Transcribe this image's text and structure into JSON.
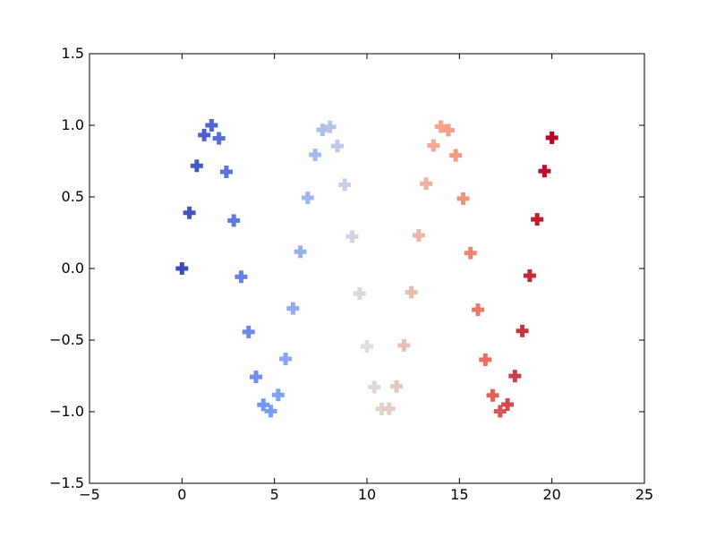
{
  "chart_data": {
    "type": "scatter",
    "title": "",
    "xlabel": "",
    "ylabel": "",
    "xlim": [
      -5,
      25
    ],
    "ylim": [
      -1.5,
      1.5
    ],
    "x_ticks": [
      "−5",
      "0",
      "5",
      "10",
      "15",
      "20",
      "25"
    ],
    "x_tick_values": [
      -5,
      0,
      5,
      10,
      15,
      20,
      25
    ],
    "y_ticks": [
      "1.5",
      "1.0",
      "0.5",
      "0.0",
      "−0.5",
      "−1.0",
      "−1.5"
    ],
    "y_tick_values": [
      1.5,
      1.0,
      0.5,
      0.0,
      -0.5,
      -1.0,
      -1.5
    ],
    "grid": false,
    "marker": "plus",
    "colormap": "coolwarm",
    "color_by": "x",
    "series": [
      {
        "x": [
          0.0,
          0.4,
          0.8,
          1.2,
          1.6,
          2.0,
          2.4,
          2.8,
          3.2,
          3.6,
          4.0,
          4.4,
          4.8,
          5.2,
          5.6,
          6.0,
          6.4,
          6.8,
          7.2,
          7.6,
          8.0,
          8.4,
          8.8,
          9.2,
          9.6,
          10.0,
          10.4,
          10.8,
          11.2,
          11.6,
          12.0,
          12.4,
          12.8,
          13.2,
          13.6,
          14.0,
          14.4,
          14.8,
          15.2,
          15.6,
          16.0,
          16.4,
          16.8,
          17.2,
          17.6,
          18.0,
          18.4,
          18.8,
          19.2,
          19.6,
          20.0
        ],
        "y": [
          0.0,
          0.389,
          0.717,
          0.932,
          1.0,
          0.909,
          0.675,
          0.335,
          -0.058,
          -0.443,
          -0.757,
          -0.952,
          -0.996,
          -0.883,
          -0.631,
          -0.279,
          0.117,
          0.494,
          0.794,
          0.968,
          0.989,
          0.855,
          0.585,
          0.223,
          -0.175,
          -0.544,
          -0.828,
          -0.981,
          -0.979,
          -0.824,
          -0.537,
          -0.166,
          0.231,
          0.592,
          0.859,
          0.991,
          0.966,
          0.79,
          0.488,
          0.108,
          -0.288,
          -0.637,
          -0.886,
          -0.997,
          -0.95,
          -0.751,
          -0.436,
          -0.05,
          0.343,
          0.68,
          0.913
        ]
      }
    ]
  }
}
